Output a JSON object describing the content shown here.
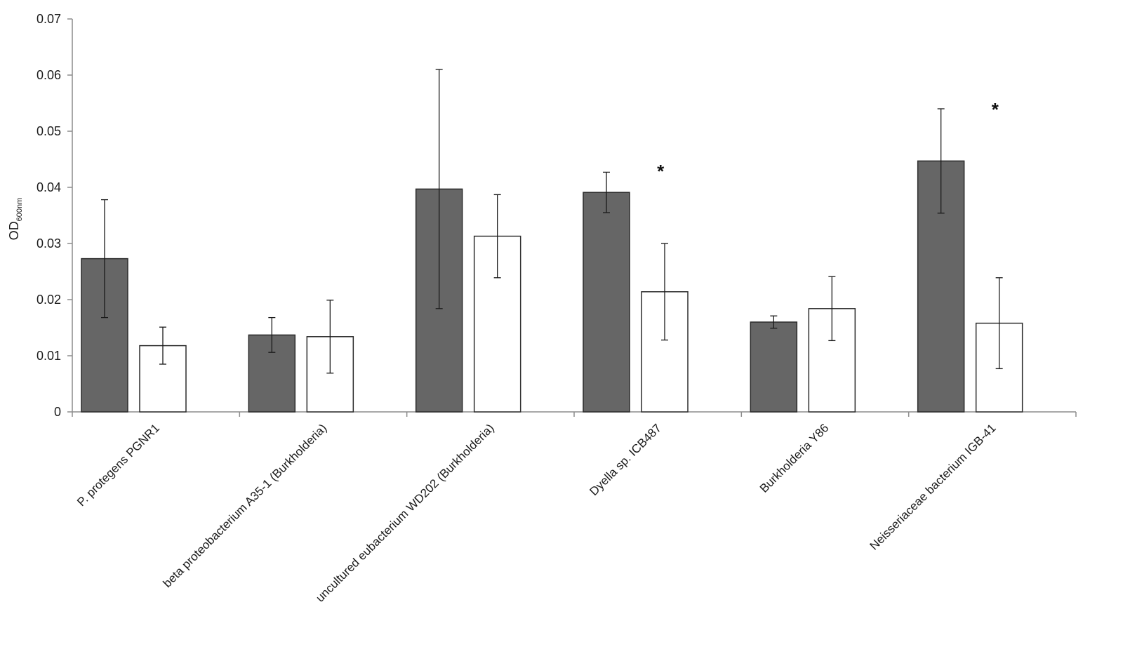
{
  "chart_data": {
    "type": "bar",
    "ylabel_main": "OD",
    "ylabel_sub": "600nm",
    "ylim": [
      0,
      0.07
    ],
    "y_ticks": [
      "0",
      "0.01",
      "0.02",
      "0.03",
      "0.04",
      "0.05",
      "0.06",
      "0.07"
    ],
    "grid": false,
    "legend": "none",
    "categories": [
      "P. protegens PGNR1",
      "beta proteobacterium A35-1 (Burkholderia)",
      "uncultured eubacterium WD202 (Burkholderia)",
      "Dyella sp. ICB487",
      "Burkholderia Y86",
      "Neisseriaceae bacterium IGB-41"
    ],
    "series": [
      {
        "color": "#666666",
        "values": [
          0.0273,
          0.0137,
          0.0397,
          0.0391,
          0.016,
          0.0447
        ],
        "errors": [
          0.0105,
          0.0031,
          0.0213,
          0.0036,
          0.0011,
          0.0093
        ]
      },
      {
        "color": "#ffffff",
        "values": [
          0.0118,
          0.0134,
          0.0313,
          0.0214,
          0.0184,
          0.0158
        ],
        "errors": [
          0.0033,
          0.0065,
          0.0074,
          0.0086,
          0.0057,
          0.0081
        ]
      }
    ],
    "annotations": [
      {
        "text": "*",
        "category_index": 3,
        "y": 0.0435
      },
      {
        "text": "*",
        "category_index": 5,
        "y": 0.0545
      }
    ]
  }
}
